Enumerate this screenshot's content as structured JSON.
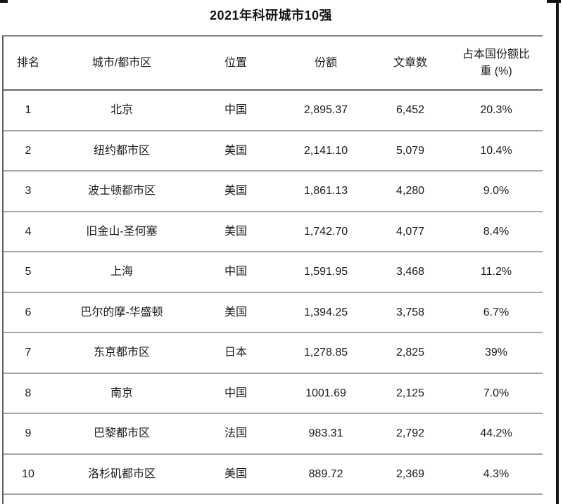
{
  "title": "2021年科研城市10强",
  "table": {
    "columns": [
      {
        "key": "rank",
        "label": "排名"
      },
      {
        "key": "city",
        "label": "城市/都市区"
      },
      {
        "key": "location",
        "label": "位置"
      },
      {
        "key": "share",
        "label": "份额"
      },
      {
        "key": "articles",
        "label": "文章数"
      },
      {
        "key": "pct",
        "label": "占本国份额比重 (%)"
      }
    ],
    "rows": [
      [
        "1",
        "北京",
        "中国",
        "2,895.37",
        "6,452",
        "20.3%"
      ],
      [
        "2",
        "纽约都市区",
        "美国",
        "2,141.10",
        "5,079",
        "10.4%"
      ],
      [
        "3",
        "波士顿都市区",
        "美国",
        "1,861.13",
        "4,280",
        "9.0%"
      ],
      [
        "4",
        "旧金山-圣何塞",
        "美国",
        "1,742.70",
        "4,077",
        "8.4%"
      ],
      [
        "5",
        "上海",
        "中国",
        "1,591.95",
        "3,468",
        "11.2%"
      ],
      [
        "6",
        "巴尔的摩-华盛顿",
        "美国",
        "1,394.25",
        "3,758",
        "6.7%"
      ],
      [
        "7",
        "东京都市区",
        "日本",
        "1,278.85",
        "2,825",
        "39%"
      ],
      [
        "8",
        "南京",
        "中国",
        "1001.69",
        "2,125",
        "7.0%"
      ],
      [
        "9",
        "巴黎都市区",
        "法国",
        "983.31",
        "2,792",
        "44.2%"
      ],
      [
        "10",
        "洛杉矶都市区",
        "美国",
        "889.72",
        "2,369",
        "4.3%"
      ]
    ]
  },
  "colors": {
    "background": "#ffffff",
    "text": "#1c1c1c",
    "table_top_border": "#878787",
    "table_left_border": "#5e5e5e",
    "header_separator": "#696969",
    "row_separator": "#a6a6a6",
    "right_edge_line": "#141414"
  }
}
